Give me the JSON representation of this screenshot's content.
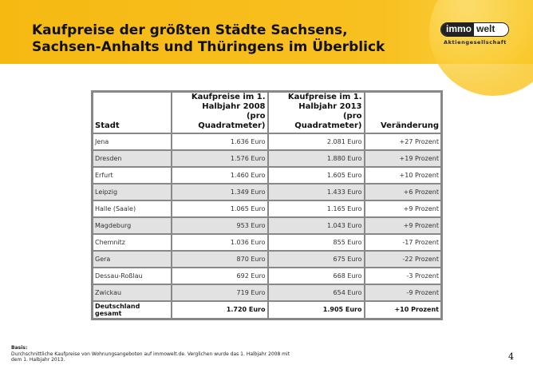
{
  "title": {
    "line1": "Kaufpreise der größten Städte Sachsens,",
    "line2": "Sachsen-Anhalts und Thüringens im Überblick"
  },
  "logo": {
    "part1": "immo",
    "part2": "welt",
    "subtitle": "Aktiengesellschaft"
  },
  "table": {
    "headers": [
      "Stadt",
      "Kaufpreise im 1. Halbjahr 2008 (pro Quadratmeter)",
      "Kaufpreise im 1. Halbjahr 2013 (pro Quadratmeter)",
      "Veränderung"
    ],
    "rows": [
      [
        "Jena",
        "1.636 Euro",
        "2.081 Euro",
        "+27 Prozent"
      ],
      [
        "Dresden",
        "1.576 Euro",
        "1.880 Euro",
        "+19 Prozent"
      ],
      [
        "Erfurt",
        "1.460 Euro",
        "1.605 Euro",
        "+10 Prozent"
      ],
      [
        "Leipzig",
        "1.349 Euro",
        "1.433 Euro",
        "+6 Prozent"
      ],
      [
        "Halle (Saale)",
        "1.065 Euro",
        "1.165 Euro",
        "+9 Prozent"
      ],
      [
        "Magdeburg",
        "953 Euro",
        "1.043 Euro",
        "+9 Prozent"
      ],
      [
        "Chemnitz",
        "1.036 Euro",
        "855 Euro",
        "-17 Prozent"
      ],
      [
        "Gera",
        "870 Euro",
        "675 Euro",
        "-22 Prozent"
      ],
      [
        "Dessau-Roßlau",
        "692 Euro",
        "668 Euro",
        "-3 Prozent"
      ],
      [
        "Zwickau",
        "719 Euro",
        "654 Euro",
        "-9 Prozent"
      ]
    ],
    "total": [
      "Deutschland gesamt",
      "1.720 Euro",
      "1.905 Euro",
      "+10 Prozent"
    ]
  },
  "footer": {
    "basis_label": "Basis:",
    "basis_text": "Durchschnittliche Kaufpreise von Wohnungsangeboten auf immowelt.de. Verglichen wurde das 1. Halbjahr 2008 mit dem 1. Halbjahr 2013.",
    "page_number": "4"
  }
}
